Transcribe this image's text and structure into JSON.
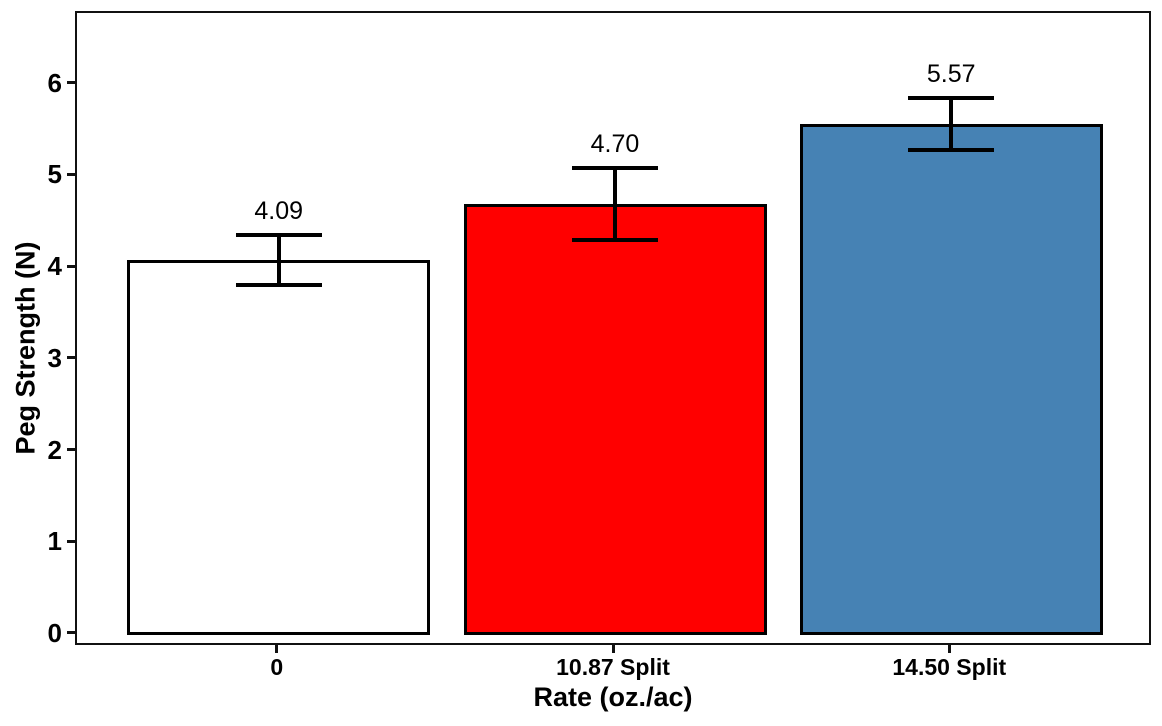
{
  "chart_data": {
    "type": "bar",
    "title": "",
    "categories": [
      "0",
      "10.87 Split",
      "14.50 Split"
    ],
    "values": [
      4.09,
      4.7,
      5.57
    ],
    "value_labels": [
      "4.09",
      "4.70",
      "5.57"
    ],
    "error_plus": [
      0.27,
      0.39,
      0.28
    ],
    "error_minus": [
      0.27,
      0.39,
      0.28
    ],
    "bar_colors": [
      "#FFFFFF",
      "#FF0000",
      "#4682B4"
    ],
    "bar_border_color": "#000000",
    "xlabel": "Rate (oz./ac)",
    "ylabel": "Peg Strength (N)",
    "yticks": [
      0,
      1,
      2,
      3,
      4,
      5,
      6
    ],
    "ylim": [
      -0.131,
      6.78
    ],
    "grid": false,
    "legend": "none"
  }
}
